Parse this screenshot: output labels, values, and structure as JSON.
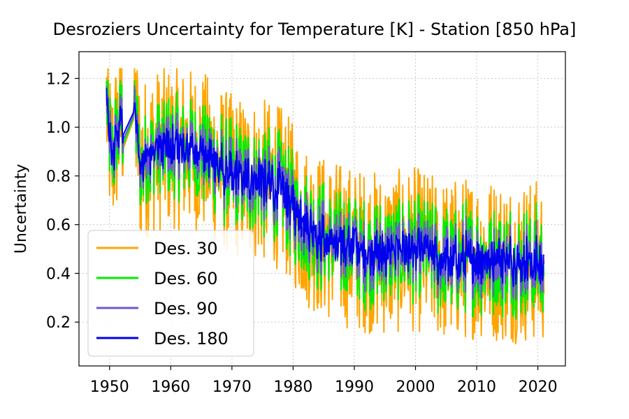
{
  "chart_data": {
    "type": "line",
    "title": "Desroziers Uncertainty for Temperature [K] - Station  [850 hPa]",
    "xlabel": "",
    "ylabel": "Uncertainty",
    "xlim": [
      1945,
      2024.5
    ],
    "ylim": [
      0.02,
      1.31
    ],
    "xticks": [
      1950,
      1960,
      1970,
      1980,
      1990,
      2000,
      2010,
      2020
    ],
    "yticks": [
      0.2,
      0.4,
      0.6,
      0.8,
      1.0,
      1.2
    ],
    "ytick_labels": [
      "0.2",
      "0.4",
      "0.6",
      "0.8",
      "1.0",
      "1.2"
    ],
    "grid": true,
    "legend_position": "lower-left",
    "anchors": {
      "x": [
        1949.5,
        1950.3,
        1951,
        1951.5,
        1952.5,
        1954,
        1954.6,
        1955,
        1957,
        1960,
        1965,
        1970,
        1975,
        1978,
        1980,
        1982,
        1985,
        1990,
        1995,
        2000,
        2005,
        2010,
        2015,
        2020,
        2021
      ],
      "mean": [
        1.1,
        0.85,
        0.95,
        1.0,
        1.05,
        1.12,
        0.95,
        0.85,
        0.9,
        0.92,
        0.9,
        0.8,
        0.78,
        0.75,
        0.68,
        0.6,
        0.55,
        0.5,
        0.48,
        0.5,
        0.45,
        0.47,
        0.45,
        0.45,
        0.45
      ]
    },
    "series": [
      {
        "name": "Des. 30",
        "color": "#ffa500",
        "amplitude": 0.34,
        "ymin": 0.08,
        "ymax": 1.24
      },
      {
        "name": "Des. 60",
        "color": "#00ee00",
        "amplitude": 0.28,
        "ymin": 0.1,
        "ymax": 1.19
      },
      {
        "name": "Des. 90",
        "color": "#6a5acd",
        "amplitude": 0.22,
        "ymin": 0.12,
        "ymax": 1.17
      },
      {
        "name": "Des. 180",
        "color": "#0000ee",
        "amplitude": 0.16,
        "ymin": 0.15,
        "ymax": 1.16
      }
    ]
  }
}
